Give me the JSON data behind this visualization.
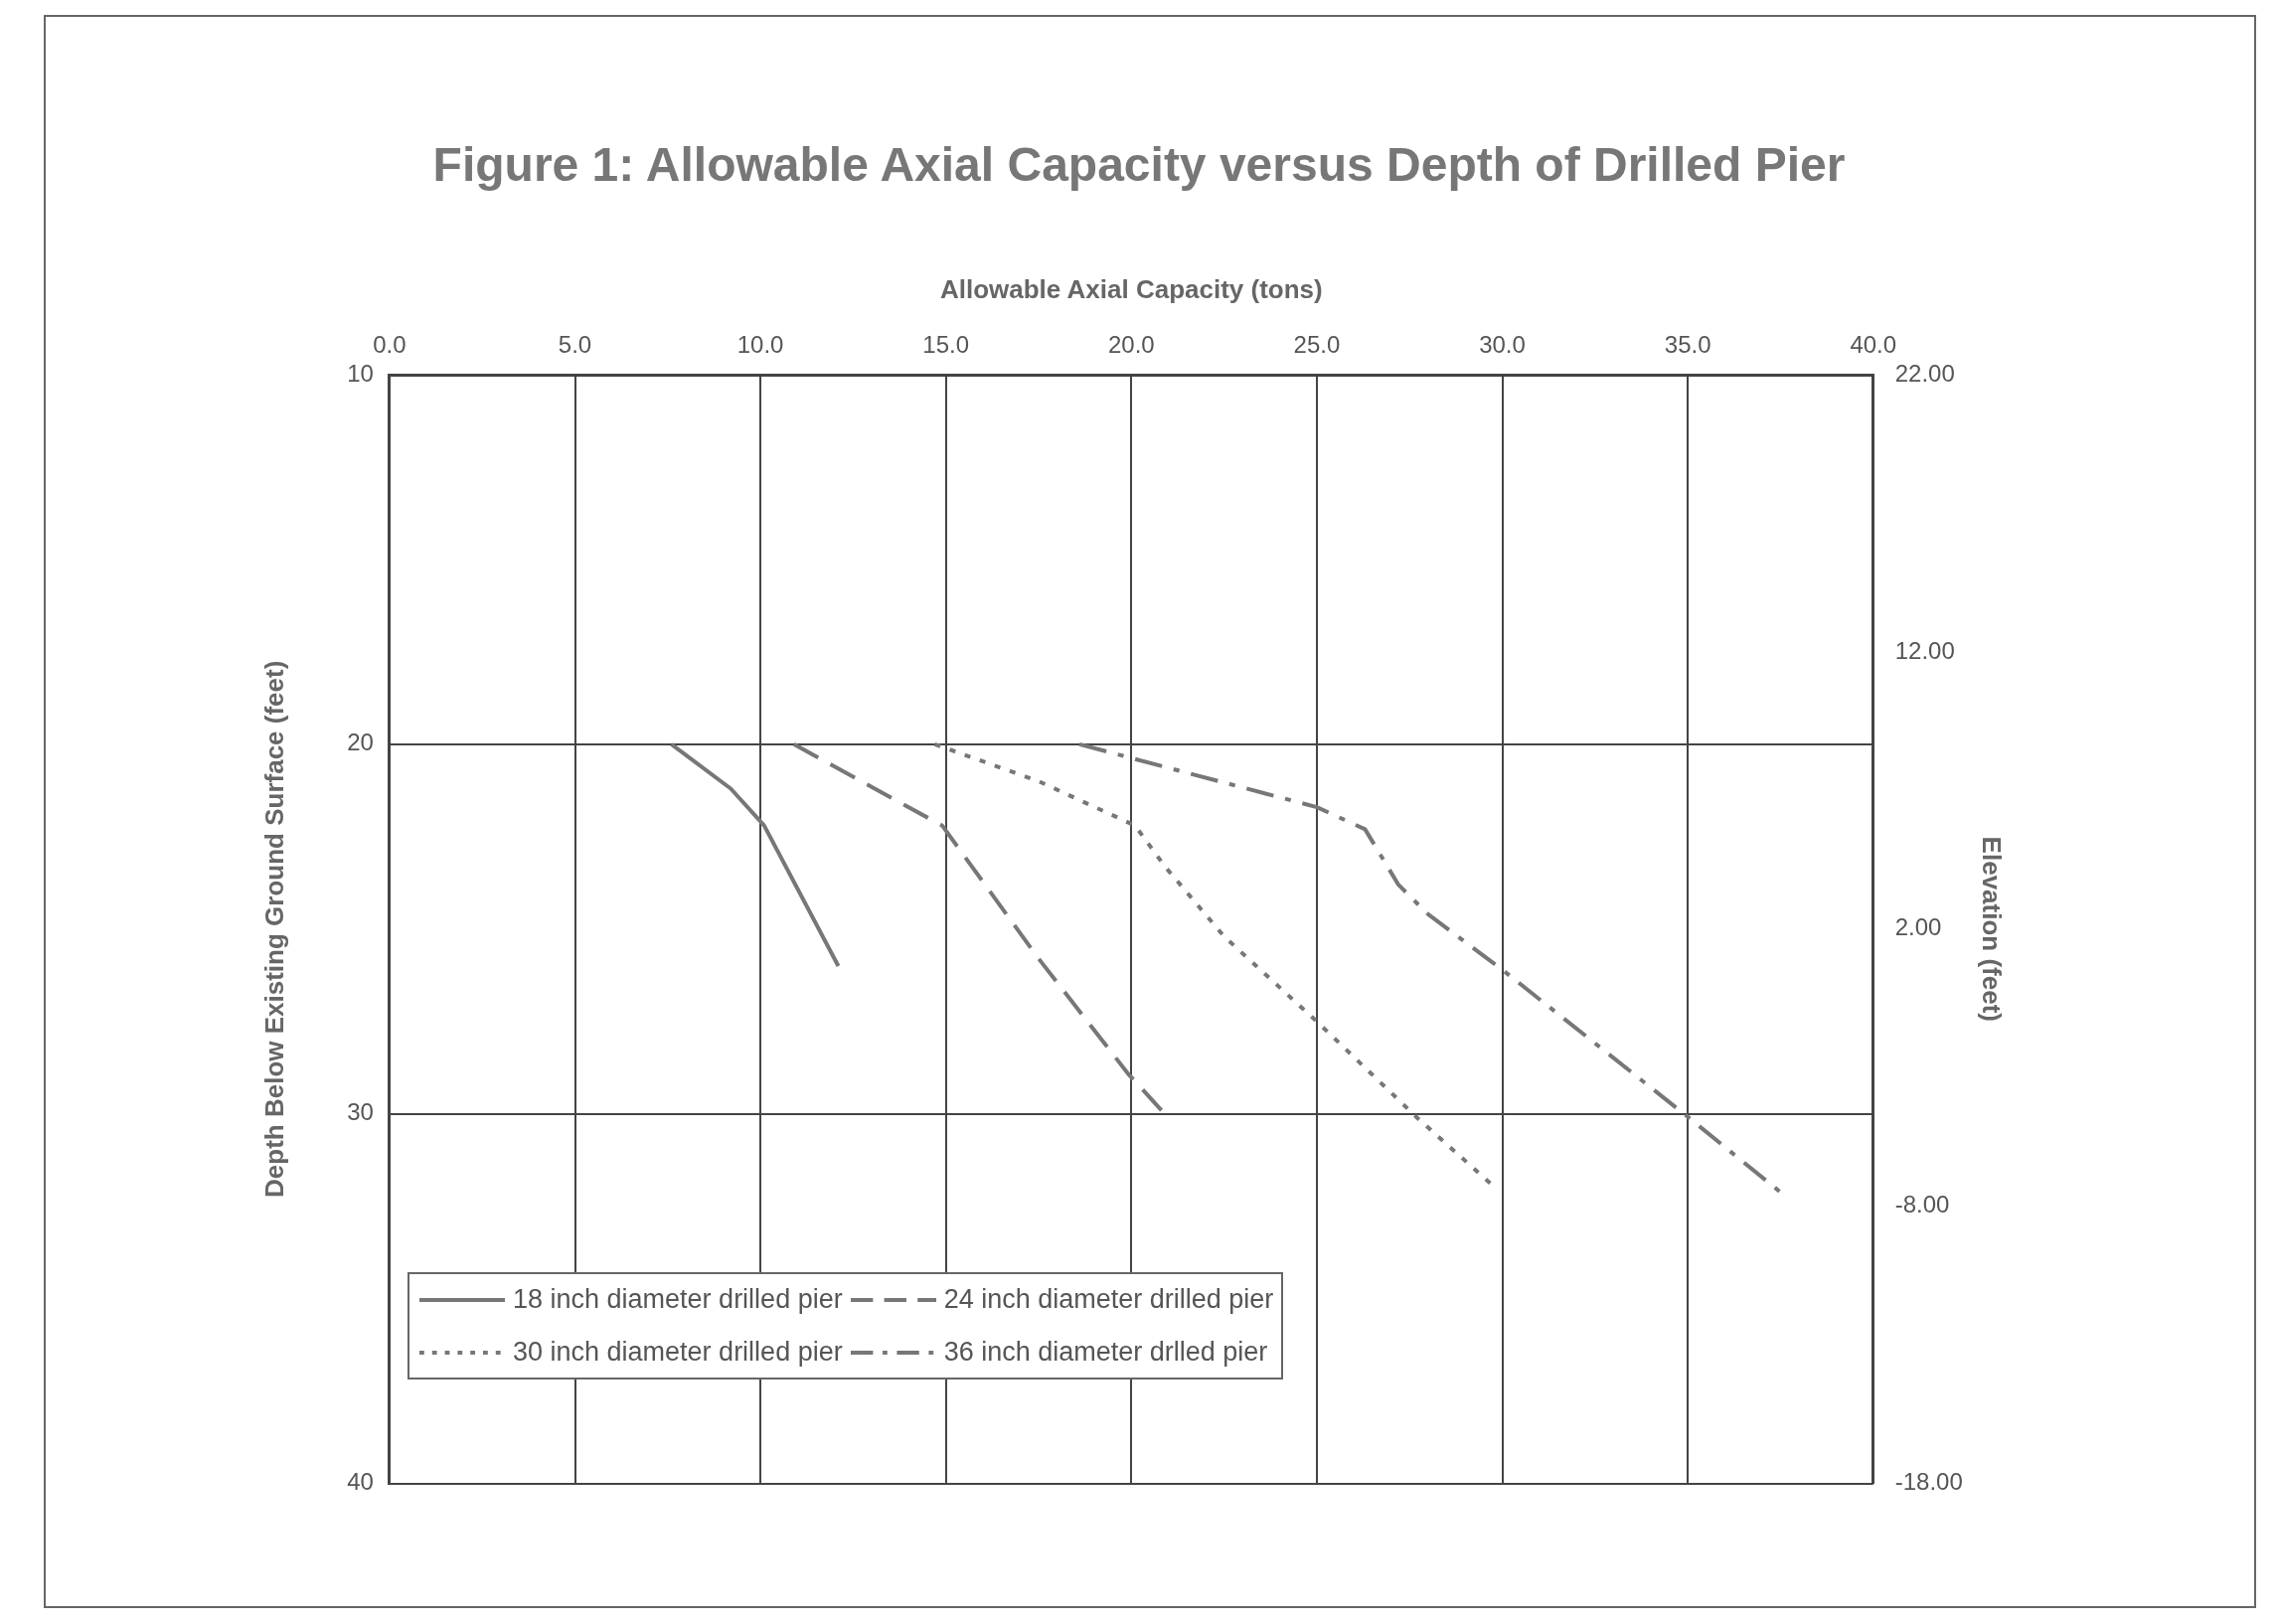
{
  "chart_data": {
    "type": "line",
    "title": "Figure 1:  Allowable Axial Capacity versus Depth of Drilled Pier",
    "xlabel": "Allowable Axial Capacity (tons)",
    "ylabel": "Depth Below Existing Ground Surface (feet)",
    "y2label": "Elevation (feet)",
    "xlim": [
      0,
      40
    ],
    "xticks": [
      {
        "value": 0,
        "label": "0.0"
      },
      {
        "value": 5,
        "label": "5.0"
      },
      {
        "value": 10,
        "label": "10.0"
      },
      {
        "value": 15,
        "label": "15.0"
      },
      {
        "value": 20,
        "label": "20.0"
      },
      {
        "value": 25,
        "label": "25.0"
      },
      {
        "value": 30,
        "label": "30.0"
      },
      {
        "value": 35,
        "label": "35.0"
      },
      {
        "value": 40,
        "label": "40.0"
      }
    ],
    "ylim": [
      40,
      10
    ],
    "yticks": [
      10,
      20,
      30,
      40
    ],
    "y2lim": [
      -18,
      22
    ],
    "y2ticks": [
      {
        "value": 22,
        "label": "22.00"
      },
      {
        "value": 12,
        "label": "12.00"
      },
      {
        "value": 2,
        "label": "2.00"
      },
      {
        "value": -8,
        "label": "-8.00"
      },
      {
        "value": -18,
        "label": "-18.00"
      }
    ],
    "grid": true,
    "legend": "bottom left",
    "marker": "none",
    "series": [
      {
        "name": "18 inch diameter drilled pier",
        "color": "#777777",
        "line_style": "solid",
        "x": [
          7.6,
          9.2,
          10.1,
          12.1
        ],
        "values": [
          20,
          21.2,
          22.2,
          26.0
        ]
      },
      {
        "name": "24 inch diameter drilled pier",
        "color": "#777777",
        "line_style": "dashed",
        "x": [
          10.9,
          14.9,
          17.5,
          19.9,
          20.9
        ],
        "values": [
          20,
          22.2,
          25.8,
          28.9,
          30
        ]
      },
      {
        "name": "30 inch diameter drilled pier",
        "color": "#777777",
        "line_style": "dotted",
        "x": [
          14.7,
          17.5,
          20.1,
          20.9,
          22.5,
          25.0,
          27.7,
          29.7
        ],
        "values": [
          20,
          21.0,
          22.2,
          23.3,
          25.2,
          27.5,
          30.1,
          31.9
        ]
      },
      {
        "name": "36 inch diameter drlled pier",
        "color": "#777777",
        "line_style": "dashdot",
        "x": [
          18.6,
          20.1,
          25.0,
          26.3,
          27.2,
          28.0,
          30.0,
          34.9,
          37.6
        ],
        "values": [
          20,
          20.4,
          21.7,
          22.3,
          23.8,
          24.6,
          26.1,
          30.0,
          32.2
        ]
      }
    ]
  }
}
